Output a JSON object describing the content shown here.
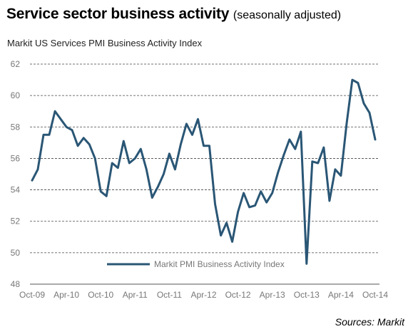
{
  "header": {
    "title": "Service sector business activity",
    "title_suffix": "(seasonally adjusted)",
    "subtitle": "Markit US Services  PMI Business Activity Index",
    "source": "Sources: Markit"
  },
  "chart_data": {
    "type": "line",
    "title": "Markit US Services  PMI Business Activity Index",
    "xlabel": "",
    "ylabel": "",
    "ylim": [
      48,
      62
    ],
    "yticks": [
      48,
      50,
      52,
      54,
      56,
      58,
      60,
      62
    ],
    "xticks": [
      "Oct-09",
      "Apr-10",
      "Oct-10",
      "Apr-11",
      "Oct-11",
      "Apr-12",
      "Oct-12",
      "Apr-13",
      "Oct-13",
      "Apr-14",
      "Oct-14"
    ],
    "x": [
      "Oct-09",
      "Nov-09",
      "Dec-09",
      "Jan-10",
      "Feb-10",
      "Mar-10",
      "Apr-10",
      "May-10",
      "Jun-10",
      "Jul-10",
      "Aug-10",
      "Sep-10",
      "Oct-10",
      "Nov-10",
      "Dec-10",
      "Jan-11",
      "Feb-11",
      "Mar-11",
      "Apr-11",
      "May-11",
      "Jun-11",
      "Jul-11",
      "Aug-11",
      "Sep-11",
      "Oct-11",
      "Nov-11",
      "Dec-11",
      "Jan-12",
      "Feb-12",
      "Mar-12",
      "Apr-12",
      "May-12",
      "Jun-12",
      "Jul-12",
      "Aug-12",
      "Sep-12",
      "Oct-12",
      "Nov-12",
      "Dec-12",
      "Jan-13",
      "Feb-13",
      "Mar-13",
      "Apr-13",
      "May-13",
      "Jun-13",
      "Jul-13",
      "Aug-13",
      "Sep-13",
      "Oct-13",
      "Nov-13",
      "Dec-13",
      "Jan-14",
      "Feb-14",
      "Mar-14",
      "Apr-14",
      "May-14",
      "Jun-14",
      "Jul-14",
      "Aug-14",
      "Sep-14",
      "Oct-14"
    ],
    "series": [
      {
        "name": "Markit PMI Business Activity Index",
        "color": "#2a5675",
        "values": [
          54.6,
          55.3,
          57.5,
          57.5,
          59.0,
          58.5,
          58.0,
          57.8,
          56.8,
          57.3,
          56.9,
          56.0,
          53.9,
          53.6,
          55.7,
          55.4,
          57.1,
          55.7,
          56.0,
          56.6,
          55.3,
          53.5,
          54.2,
          55.0,
          56.3,
          55.3,
          56.9,
          58.2,
          57.5,
          58.5,
          56.8,
          56.8,
          53.1,
          51.1,
          51.9,
          50.7,
          52.6,
          53.8,
          52.9,
          53.0,
          53.9,
          53.2,
          53.8,
          55.1,
          56.2,
          57.2,
          56.6,
          57.7,
          49.3,
          55.8,
          55.7,
          56.7,
          53.3,
          55.3,
          54.9,
          58.2,
          61.0,
          60.8,
          59.5,
          58.9,
          57.2
        ]
      }
    ],
    "legend_position": "bottom-center",
    "grid": "horizontal-dashed"
  }
}
